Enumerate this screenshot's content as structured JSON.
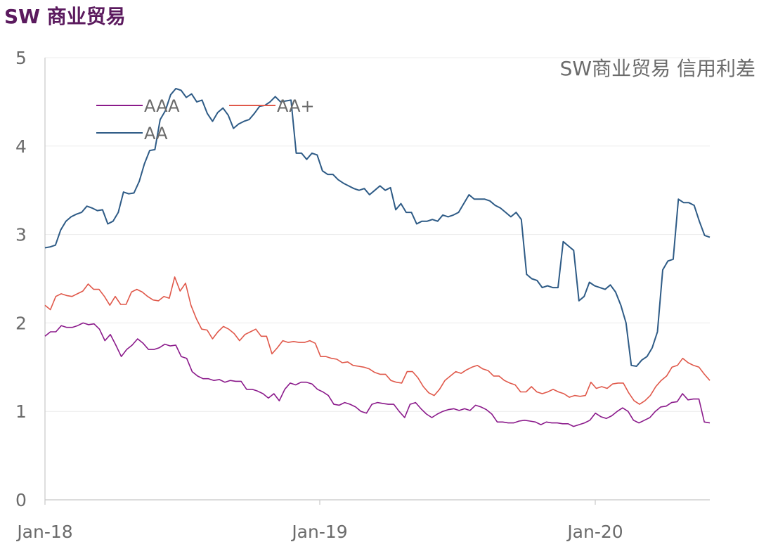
{
  "page_title": "SW 商业贸易",
  "chart_data": {
    "type": "line",
    "title": "SW商业贸易 信用利差",
    "ylim": [
      0,
      5
    ],
    "y_ticks": [
      "0",
      "1",
      "2",
      "3",
      "4",
      "5"
    ],
    "x_ticks": [
      "Jan-18",
      "Jan-19",
      "Jan-20"
    ],
    "grid": true,
    "legend": "top-left",
    "colors": {
      "AAA": "#8b1a8b",
      "AA+": "#e0584a",
      "AA": "#2e5b86"
    },
    "series": [
      {
        "name": "AAA",
        "values": [
          1.85,
          1.9,
          1.9,
          1.97,
          1.95,
          1.95,
          1.97,
          2.0,
          1.98,
          1.99,
          1.93,
          1.8,
          1.87,
          1.75,
          1.62,
          1.7,
          1.75,
          1.82,
          1.77,
          1.7,
          1.7,
          1.72,
          1.76,
          1.74,
          1.75,
          1.62,
          1.6,
          1.45,
          1.4,
          1.37,
          1.37,
          1.35,
          1.36,
          1.33,
          1.35,
          1.34,
          1.34,
          1.25,
          1.25,
          1.23,
          1.2,
          1.15,
          1.2,
          1.12,
          1.25,
          1.32,
          1.3,
          1.33,
          1.33,
          1.31,
          1.25,
          1.22,
          1.18,
          1.08,
          1.07,
          1.1,
          1.08,
          1.05,
          1.0,
          0.98,
          1.08,
          1.1,
          1.09,
          1.08,
          1.08,
          1.0,
          0.93,
          1.08,
          1.1,
          1.03,
          0.97,
          0.93,
          0.97,
          1.0,
          1.02,
          1.03,
          1.01,
          1.03,
          1.01,
          1.07,
          1.05,
          1.02,
          0.97,
          0.88,
          0.88,
          0.87,
          0.87,
          0.89,
          0.9,
          0.89,
          0.88,
          0.85,
          0.88,
          0.87,
          0.87,
          0.86,
          0.86,
          0.83,
          0.85,
          0.87,
          0.9,
          0.98,
          0.94,
          0.92,
          0.95,
          1.0,
          1.04,
          1.0,
          0.9,
          0.87,
          0.9,
          0.93,
          1.0,
          1.05,
          1.06,
          1.1,
          1.11,
          1.2,
          1.13,
          1.14,
          1.14,
          0.88,
          0.87
        ]
      },
      {
        "name": "AA+",
        "values": [
          2.2,
          2.15,
          2.3,
          2.33,
          2.31,
          2.3,
          2.33,
          2.36,
          2.44,
          2.38,
          2.38,
          2.3,
          2.2,
          2.3,
          2.21,
          2.21,
          2.35,
          2.38,
          2.35,
          2.3,
          2.26,
          2.25,
          2.3,
          2.28,
          2.52,
          2.36,
          2.45,
          2.2,
          2.05,
          1.93,
          1.92,
          1.82,
          1.9,
          1.96,
          1.93,
          1.88,
          1.8,
          1.87,
          1.9,
          1.93,
          1.85,
          1.85,
          1.65,
          1.72,
          1.8,
          1.78,
          1.79,
          1.78,
          1.78,
          1.8,
          1.77,
          1.62,
          1.62,
          1.6,
          1.59,
          1.55,
          1.56,
          1.52,
          1.51,
          1.5,
          1.48,
          1.44,
          1.42,
          1.42,
          1.35,
          1.33,
          1.32,
          1.45,
          1.45,
          1.38,
          1.28,
          1.21,
          1.18,
          1.25,
          1.35,
          1.4,
          1.45,
          1.43,
          1.47,
          1.5,
          1.52,
          1.48,
          1.46,
          1.4,
          1.4,
          1.35,
          1.32,
          1.3,
          1.22,
          1.22,
          1.28,
          1.22,
          1.2,
          1.22,
          1.25,
          1.22,
          1.2,
          1.16,
          1.18,
          1.17,
          1.18,
          1.33,
          1.26,
          1.28,
          1.26,
          1.31,
          1.32,
          1.32,
          1.21,
          1.12,
          1.08,
          1.12,
          1.18,
          1.28,
          1.35,
          1.4,
          1.5,
          1.52,
          1.6,
          1.55,
          1.52,
          1.5,
          1.42,
          1.35
        ]
      },
      {
        "name": "AA",
        "values": [
          2.85,
          2.86,
          2.88,
          3.05,
          3.15,
          3.2,
          3.23,
          3.25,
          3.32,
          3.3,
          3.27,
          3.28,
          3.12,
          3.15,
          3.25,
          3.48,
          3.46,
          3.47,
          3.6,
          3.8,
          3.95,
          3.96,
          4.3,
          4.4,
          4.58,
          4.65,
          4.63,
          4.55,
          4.59,
          4.5,
          4.52,
          4.37,
          4.28,
          4.38,
          4.43,
          4.35,
          4.2,
          4.25,
          4.28,
          4.3,
          4.37,
          4.45,
          4.46,
          4.5,
          4.56,
          4.5,
          4.51,
          4.52,
          3.92,
          3.92,
          3.85,
          3.92,
          3.9,
          3.72,
          3.68,
          3.68,
          3.62,
          3.58,
          3.55,
          3.52,
          3.5,
          3.52,
          3.45,
          3.5,
          3.55,
          3.5,
          3.53,
          3.28,
          3.35,
          3.25,
          3.25,
          3.12,
          3.15,
          3.15,
          3.17,
          3.15,
          3.22,
          3.2,
          3.22,
          3.25,
          3.35,
          3.45,
          3.4,
          3.4,
          3.4,
          3.38,
          3.33,
          3.3,
          3.25,
          3.2,
          3.25,
          3.17,
          2.55,
          2.5,
          2.48,
          2.4,
          2.42,
          2.4,
          2.4,
          2.92,
          2.87,
          2.82,
          2.25,
          2.3,
          2.46,
          2.42,
          2.4,
          2.38,
          2.43,
          2.35,
          2.2,
          2.0,
          1.52,
          1.51,
          1.58,
          1.62,
          1.72,
          1.9,
          2.6,
          2.7,
          2.72,
          3.4,
          3.36,
          3.36,
          3.33,
          3.15,
          2.99,
          2.97
        ]
      }
    ]
  }
}
